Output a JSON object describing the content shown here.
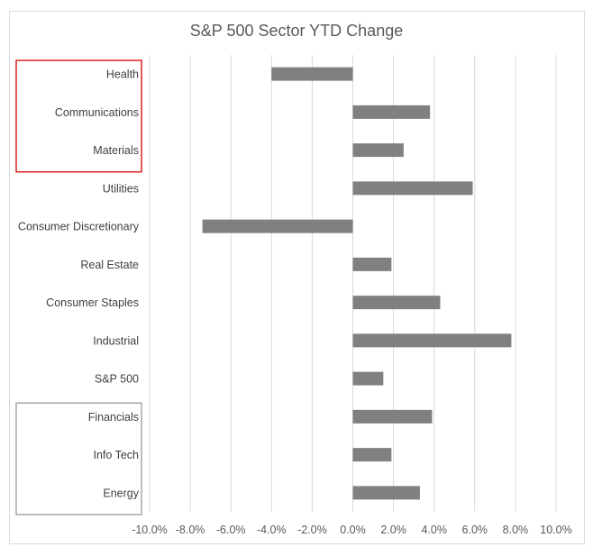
{
  "chart_data": {
    "type": "bar",
    "orientation": "horizontal",
    "title": "S&P 500 Sector YTD Change",
    "categories": [
      "Health",
      "Communications",
      "Materials",
      "Utilities",
      "Consumer Discretionary",
      "Real Estate",
      "Consumer Staples",
      "Industrial",
      "S&P 500",
      "Financials",
      "Info Tech",
      "Energy"
    ],
    "values": [
      -4.0,
      3.8,
      2.5,
      5.9,
      -7.4,
      1.9,
      4.3,
      7.8,
      1.5,
      3.9,
      1.9,
      3.3
    ],
    "xlim": [
      -10,
      10
    ],
    "x_ticks": [
      "-10.0%",
      "-8.0%",
      "-6.0%",
      "-4.0%",
      "-2.0%",
      "0.0%",
      "2.0%",
      "4.0%",
      "6.0%",
      "8.0%",
      "10.0%"
    ],
    "grid": "vertical",
    "bar_color": "#808080",
    "highlight_boxes": [
      {
        "categories": [
          "Health",
          "Communications",
          "Materials"
        ],
        "color": "#e02020"
      },
      {
        "categories": [
          "Financials",
          "Info Tech",
          "Energy"
        ],
        "color": "#a6a6a6"
      }
    ]
  }
}
